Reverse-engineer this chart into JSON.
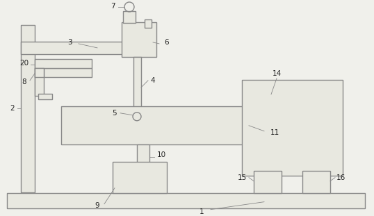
{
  "bg_color": "#f0f0eb",
  "line_color": "#888888",
  "fill_color": "#e8e8e0",
  "lw": 1.0,
  "leader_lw": 0.6
}
